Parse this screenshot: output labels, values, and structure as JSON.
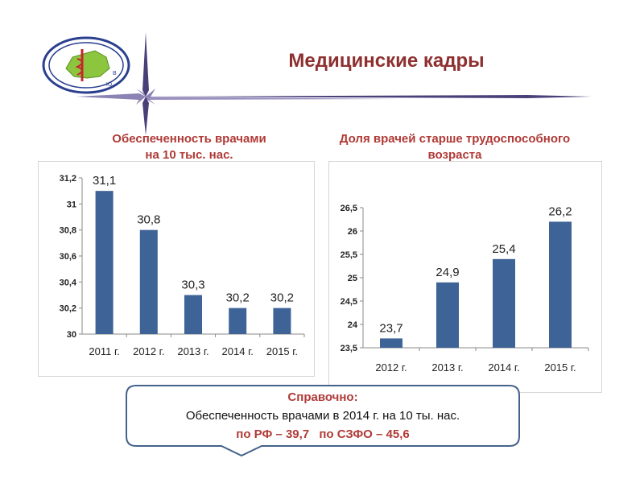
{
  "page_title": "Медицинские кадры",
  "logo": {
    "icon": "medical-caduceus-emblem",
    "ring_text": "Департамент здравоохранения Вологодской области"
  },
  "colors": {
    "title": "#8e3030",
    "subtitle": "#b03a36",
    "bar": "#3e6396",
    "callout_border": "#44628a"
  },
  "chart_data": [
    {
      "type": "bar",
      "title_lines": [
        "Обеспеченность врачами",
        "на 10 тыс. нас."
      ],
      "categories": [
        "2011 г.",
        "2012 г.",
        "2013 г.",
        "2014 г.",
        "2015 г."
      ],
      "values": [
        31.1,
        30.8,
        30.3,
        30.2,
        30.2
      ],
      "value_labels": [
        "31,1",
        "30,8",
        "30,3",
        "30,2",
        "30,2"
      ],
      "ylim": [
        30,
        31.2
      ],
      "yticks": [
        30,
        30.2,
        30.4,
        30.6,
        30.8,
        31,
        31.2
      ],
      "ytick_labels": [
        "30",
        "30,2",
        "30,4",
        "30,6",
        "30,8",
        "31",
        "31,2"
      ],
      "xlabel": "",
      "ylabel": "",
      "grid": false,
      "legend": "none"
    },
    {
      "type": "bar",
      "title_lines": [
        "Доля врачей старше трудоспособного",
        "возраста"
      ],
      "categories": [
        "2012 г.",
        "2013 г.",
        "2014 г.",
        "2015 г."
      ],
      "values": [
        23.7,
        24.9,
        25.4,
        26.2
      ],
      "value_labels": [
        "23,7",
        "24,9",
        "25,4",
        "26,2"
      ],
      "ylim": [
        23.5,
        26.5
      ],
      "yticks": [
        23.5,
        24,
        24.5,
        25,
        25.5,
        26,
        26.5
      ],
      "ytick_labels": [
        "23,5",
        "24",
        "24,5",
        "25",
        "25,5",
        "26",
        "26,5"
      ],
      "xlabel": "",
      "ylabel": "",
      "grid": false,
      "legend": "none"
    }
  ],
  "reference": {
    "heading": "Справочно:",
    "text": "Обеспеченность врачами в 2014 г. на 10 ты. нас.",
    "rf": "по РФ – 39,7",
    "szfo": "по СЗФО – 45,6"
  }
}
